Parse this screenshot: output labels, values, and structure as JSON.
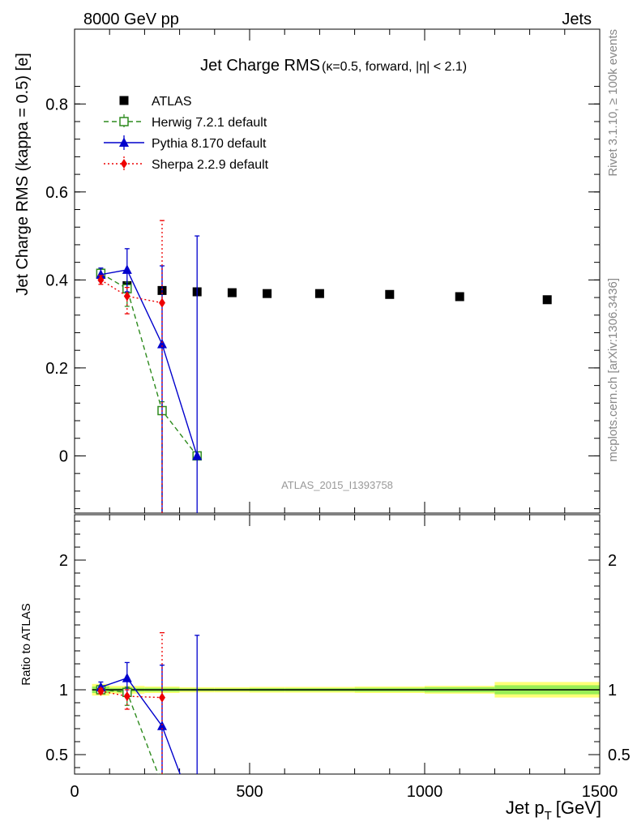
{
  "header": {
    "energy_label": "8000 GeV pp",
    "process_label": "Jets"
  },
  "side_text": {
    "rivet": "Rivet 3.1.10, ≥ 100k events",
    "source": "mcplots.cern.ch [arXiv:1306.3436]"
  },
  "watermark": "ATLAS_2015_I1393758",
  "colors": {
    "atlas": "#000000",
    "herwig": "#2e8b1e",
    "pythia": "#0000cc",
    "sherpa": "#ee0000",
    "band_inner": "#99ee55",
    "band_outer": "#ffff77"
  },
  "chart_data": [
    {
      "type": "scatter",
      "panel": "main",
      "title": "Jet Charge RMS",
      "subtitle": "(κ=0.5, forward, |η| < 2.1)",
      "ylabel": "Jet Charge RMS (kappa = 0.5) [e]",
      "xlim": [
        0,
        1500
      ],
      "ylim": [
        -0.13,
        0.97
      ],
      "yticks": [
        0,
        0.2,
        0.4,
        0.6,
        0.8
      ],
      "ytick_labels": [
        "0",
        "0.2",
        "0.4",
        "0.6",
        "0.8"
      ],
      "legend_position": "top-left",
      "series": [
        {
          "name": "ATLAS",
          "style": "data",
          "marker": "square",
          "x": [
            75,
            150,
            250,
            350,
            450,
            550,
            700,
            900,
            1100,
            1350
          ],
          "y": [
            0.413,
            0.387,
            0.376,
            0.373,
            0.371,
            0.369,
            0.369,
            0.367,
            0.362,
            0.355
          ]
        },
        {
          "name": "Herwig 7.2.1 default",
          "style": "dashed",
          "marker": "open-square",
          "x": [
            75,
            150,
            250,
            350
          ],
          "y": [
            0.415,
            0.38,
            0.103,
            0.0
          ],
          "err_low": [
            0.008,
            0.04,
            0.29,
            0.0
          ],
          "err_high": [
            0.008,
            0.015,
            0.02,
            0.0
          ]
        },
        {
          "name": "Pythia 8.170 default",
          "style": "solid",
          "marker": "triangle",
          "x": [
            75,
            150,
            250,
            350
          ],
          "y": [
            0.412,
            0.423,
            0.254,
            0.0
          ],
          "err_low": [
            0.015,
            0.05,
            0.44,
            0.5
          ],
          "err_high": [
            0.015,
            0.048,
            0.178,
            0.5
          ]
        },
        {
          "name": "Sherpa 2.2.9 default",
          "style": "dotted",
          "marker": "diamond",
          "x": [
            75,
            150,
            250
          ],
          "y": [
            0.4,
            0.363,
            0.348
          ],
          "err_low": [
            0.01,
            0.04,
            0.5
          ],
          "err_high": [
            0.01,
            0.02,
            0.187
          ]
        }
      ]
    },
    {
      "type": "line",
      "panel": "ratio",
      "ylabel": "Ratio to ATLAS",
      "xlabel": "Jet p",
      "xlabel_sub": "T",
      "xlabel_unit": "[GeV]",
      "xlim": [
        0,
        1500
      ],
      "ylim": [
        0.35,
        2.35
      ],
      "xticks": [
        0,
        500,
        1000,
        1500
      ],
      "xtick_labels": [
        "0",
        "500",
        "1000",
        "1500"
      ],
      "yticks": [
        0.5,
        1,
        2
      ],
      "ytick_labels": [
        "0.5",
        "1",
        "2"
      ],
      "band": {
        "x_edges": [
          50,
          100,
          200,
          300,
          400,
          500,
          600,
          800,
          1000,
          1200,
          1500
        ],
        "inner": [
          0.025,
          0.015,
          0.015,
          0.01,
          0.01,
          0.012,
          0.012,
          0.015,
          0.02,
          0.035
        ],
        "outer": [
          0.045,
          0.03,
          0.025,
          0.02,
          0.02,
          0.022,
          0.022,
          0.025,
          0.03,
          0.06
        ]
      },
      "series": [
        {
          "name": "Herwig 7.2.1 default",
          "style": "dashed",
          "marker": "open-square",
          "x": [
            75,
            150,
            250
          ],
          "y": [
            1.0,
            0.98,
            0.27
          ],
          "err_low": [
            0.02,
            0.1,
            0.77
          ],
          "err_high": [
            0.02,
            0.04,
            0.05
          ]
        },
        {
          "name": "Pythia 8.170 default",
          "style": "solid",
          "marker": "triangle",
          "x": [
            75,
            150,
            250,
            350
          ],
          "y": [
            1.02,
            1.09,
            0.72,
            0.0
          ],
          "err_low": [
            0.04,
            0.13,
            1.17,
            1.34
          ],
          "err_high": [
            0.04,
            0.12,
            0.47,
            1.42
          ]
        },
        {
          "name": "Sherpa 2.2.9 default",
          "style": "dotted",
          "marker": "diamond",
          "x": [
            75,
            150,
            250
          ],
          "y": [
            0.99,
            0.95,
            0.94
          ],
          "err_low": [
            0.02,
            0.1,
            1.33
          ],
          "err_high": [
            0.02,
            0.05,
            0.5
          ]
        }
      ]
    }
  ]
}
